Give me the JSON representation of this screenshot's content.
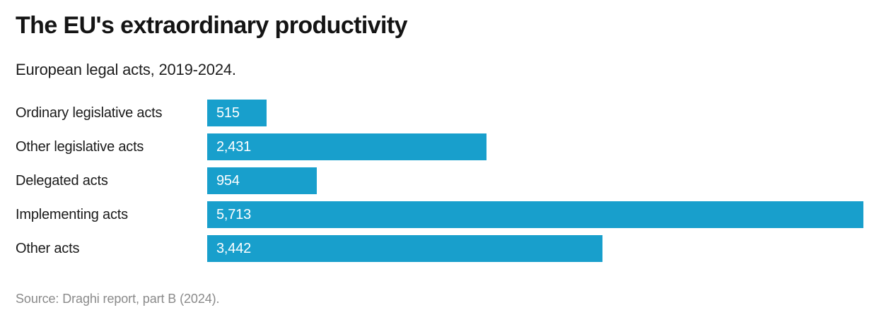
{
  "header": {
    "title": "The EU's extraordinary productivity",
    "subtitle": "European legal acts, 2019-2024."
  },
  "footer": {
    "source": "Source: Draghi report, part B (2024)."
  },
  "chart_data": {
    "type": "bar",
    "orientation": "horizontal",
    "title": "The EU's extraordinary productivity",
    "subtitle": "European legal acts, 2019-2024.",
    "xlabel": "",
    "ylabel": "",
    "grid": false,
    "legend": false,
    "axis_ticks_visible": false,
    "xlim": [
      0,
      5713
    ],
    "categories": [
      "Ordinary legislative acts",
      "Other legislative acts",
      "Delegated acts",
      "Implementing acts",
      "Other acts"
    ],
    "values": [
      515,
      2431,
      954,
      5713,
      3442
    ],
    "value_labels": [
      "515",
      "2,431",
      "954",
      "5,713",
      "3,442"
    ],
    "max_value": 5713,
    "bar_color": "#189fcc",
    "value_label_color": "#ffffff",
    "value_label_position": "inside-left",
    "source": "Source: Draghi report, part B (2024)."
  }
}
